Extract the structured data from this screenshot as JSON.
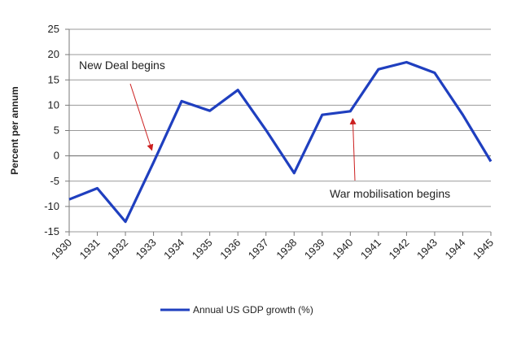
{
  "chart_data": {
    "type": "line",
    "x": [
      "1930",
      "1931",
      "1932",
      "1933",
      "1934",
      "1935",
      "1936",
      "1937",
      "1938",
      "1939",
      "1940",
      "1941",
      "1942",
      "1943",
      "1944",
      "1945"
    ],
    "series": [
      {
        "name": "Annual US GDP growth (%)",
        "values": [
          -8.6,
          -6.4,
          -13.0,
          -1.3,
          10.8,
          8.9,
          13.0,
          5.1,
          -3.4,
          8.1,
          8.8,
          17.1,
          18.5,
          16.4,
          8.1,
          -1.1
        ],
        "color": "#1f3fbf"
      }
    ],
    "xlabel": "",
    "ylabel": "Percent per annum",
    "ylim": [
      -15,
      25
    ],
    "yticks": [
      25,
      20,
      15,
      10,
      5,
      0,
      -5,
      -10,
      -15
    ],
    "grid": true,
    "legend_position": "bottom",
    "annotations": [
      {
        "text": "New Deal begins",
        "target_x": "1933",
        "target_y": 0
      },
      {
        "text": "War mobilisation begins",
        "target_x": "1940",
        "target_y": 7.5
      }
    ],
    "annotation_arrow_color": "#cc1f1f"
  }
}
